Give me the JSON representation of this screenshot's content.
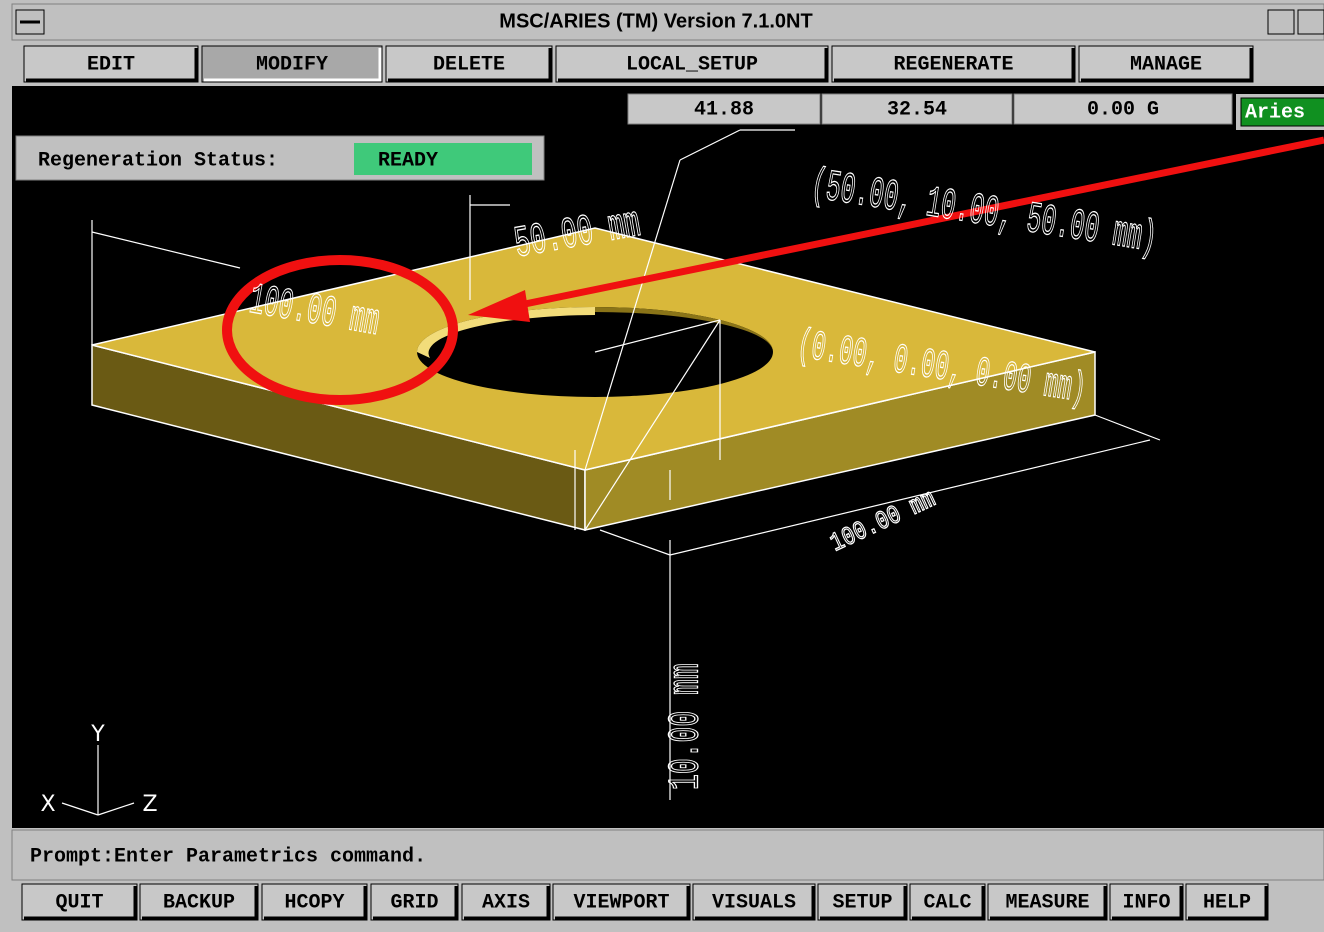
{
  "window": {
    "title": "MSC/ARIES (TM) Version 7.1.0NT"
  },
  "menu": [
    "EDIT",
    "MODIFY",
    "DELETE",
    "LOCAL_SETUP",
    "REGENERATE",
    "MANAGE"
  ],
  "coordinates": [
    "41.88",
    "32.54",
    "0.00 G"
  ],
  "mode": "Aries",
  "status": {
    "label": "Regeneration Status:",
    "value": "READY"
  },
  "viewport": {
    "labels": [
      "50.00 mm",
      "100.00 mm",
      "(50.00, 10.00, 50.00 mm)",
      "(0.00, 0.00, 0.00 mm)",
      "100.00 mm",
      "10.00 mm"
    ],
    "axes": [
      "Y",
      "X",
      "Z"
    ]
  },
  "prompt": "Prompt:Enter Parametrics command.",
  "toolbar": [
    "QUIT",
    "BACKUP",
    "HCOPY",
    "GRID",
    "AXIS",
    "VIEWPORT",
    "VISUALS",
    "SETUP",
    "CALC",
    "MEASURE",
    "INFO",
    "HELP"
  ]
}
